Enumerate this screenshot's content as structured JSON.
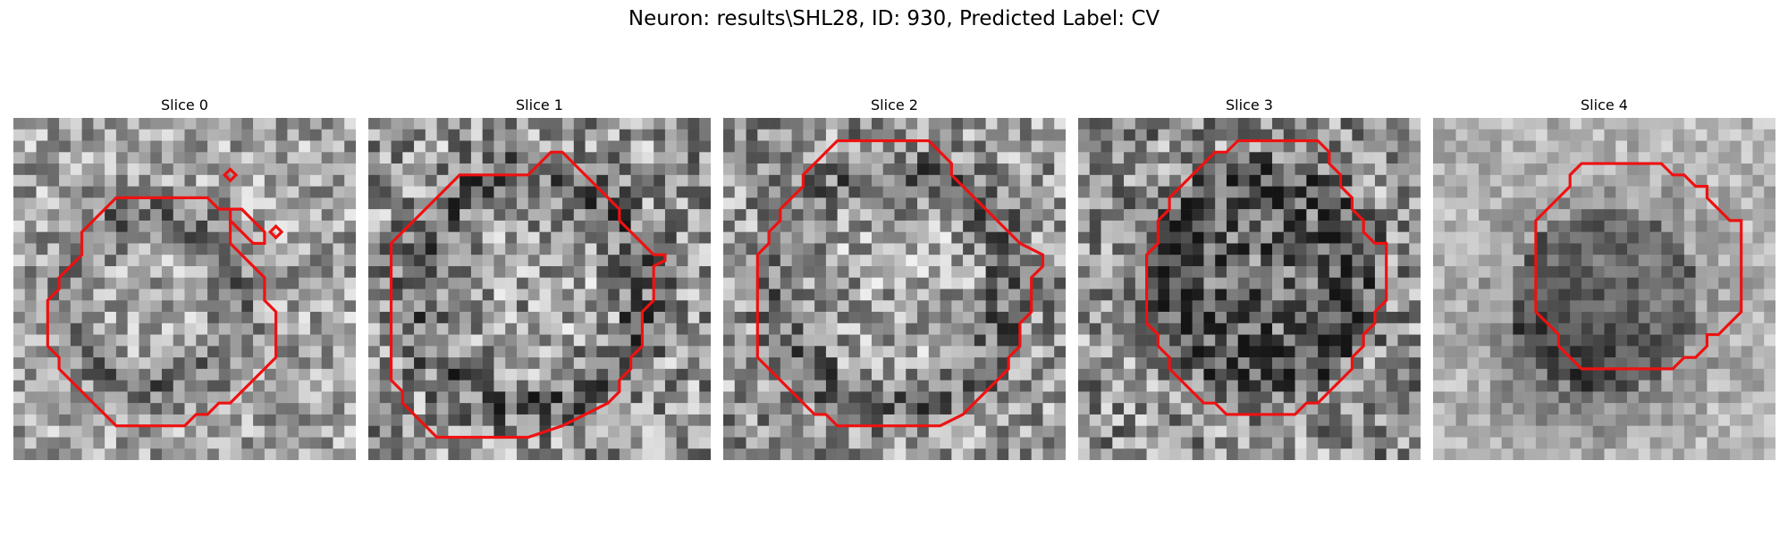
{
  "figure": {
    "title": "Neuron: results\\SHL28, ID: 930, Predicted Label: CV"
  },
  "panels": [
    {
      "title": "Slice 0"
    },
    {
      "title": "Slice 1"
    },
    {
      "title": "Slice 2"
    },
    {
      "title": "Slice 3"
    },
    {
      "title": "Slice 4"
    }
  ],
  "colors": {
    "contour": "#ee1111"
  }
}
